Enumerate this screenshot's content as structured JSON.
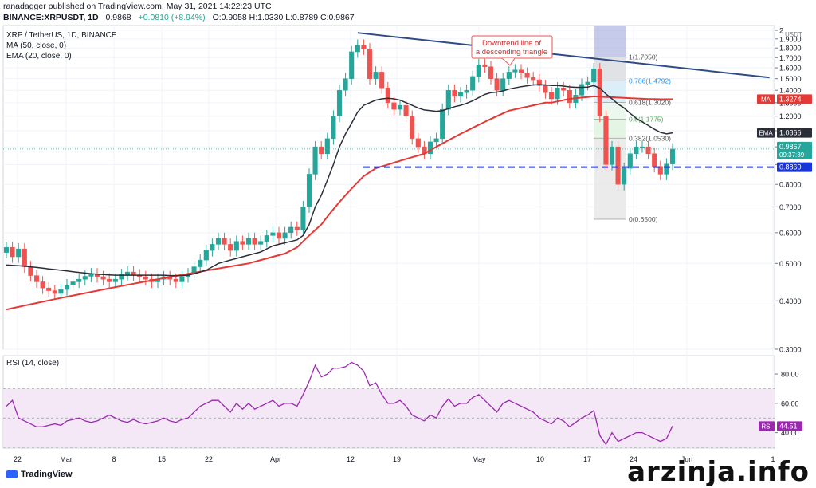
{
  "header": {
    "publisher_line": "ranadagger published on TradingView.com, May 31, 2021 14:22:23 UTC",
    "symbol": "BINANCE:XRPUSDT, 1D",
    "last": "0.9868",
    "change": "+0.0810 (+8.94%)",
    "ohlc": "O:0.9058 H:1.0330 L:0.8789 C:0.9867"
  },
  "indicators": {
    "title": "XRP / TetherUS, 1D, BINANCE",
    "ma": "MA (50, close, 0)",
    "ema": "EMA (20, close, 0)",
    "rsi": "RSI (14, close)"
  },
  "annotation": "Downtrend line of a descending triangle",
  "footer": {
    "brand": "TradingView",
    "watermark": "arzinja.info"
  },
  "colors": {
    "up": "#26a69a",
    "down": "#ef5350",
    "ma": "#e53935",
    "ema": "#2a2e39",
    "trend": "#2f4b85",
    "support": "#1a35d6",
    "rsi": "#9c27b0"
  },
  "chart_data": {
    "type": "candlestick",
    "price_axis_label": "USDT",
    "price_ticks": [
      "0.3000",
      "0.4000",
      "0.5000",
      "0.6000",
      "0.7000",
      "0.8000",
      "0.9000",
      "1.0000",
      "1.1000",
      "1.2000",
      "1.3000",
      "1.4000",
      "1.5000",
      "1.6000",
      "1.7000",
      "1.8000",
      "1.9000",
      "2"
    ],
    "rsi_ticks": [
      "40.00",
      "60.00",
      "80.00"
    ],
    "date_ticks": [
      "22",
      "Mar",
      "8",
      "15",
      "22",
      "Apr",
      "12",
      "19",
      "May",
      "10",
      "17",
      "24",
      "Jun",
      "1"
    ],
    "price_labels": [
      {
        "text": "0.9867",
        "sub": "09:37:39",
        "color": "#26a69a"
      },
      {
        "text": "0.8860",
        "color": "#1a35d6"
      },
      {
        "text": "1.0866",
        "prefix": "EMA",
        "color": "#2a2e39"
      },
      {
        "text": "1.3274",
        "prefix": "MA",
        "color": "#e53935"
      }
    ],
    "rsi_label": {
      "prefix": "RSI",
      "text": "44.51"
    },
    "support_level": 0.886,
    "fib": [
      {
        "label": "1(1.7050)",
        "value": 1.705
      },
      {
        "label": "0.786(1.4792)",
        "value": 1.4792
      },
      {
        "label": "0.618(1.3020)",
        "value": 1.302
      },
      {
        "label": "0.5(1.1775)",
        "value": 1.1775
      },
      {
        "label": "0.382(1.0530)",
        "value": 1.053
      },
      {
        "label": "0(0.6500)",
        "value": 0.65
      }
    ],
    "trendline": [
      {
        "bar": 58,
        "price": 1.97
      },
      {
        "bar": 126,
        "price": 1.51
      }
    ],
    "closes": [
      0.55,
      0.52,
      0.545,
      0.49,
      0.465,
      0.448,
      0.432,
      0.425,
      0.418,
      0.428,
      0.44,
      0.448,
      0.455,
      0.463,
      0.47,
      0.462,
      0.455,
      0.448,
      0.455,
      0.468,
      0.475,
      0.467,
      0.462,
      0.455,
      0.448,
      0.455,
      0.462,
      0.455,
      0.448,
      0.462,
      0.47,
      0.49,
      0.51,
      0.54,
      0.56,
      0.58,
      0.56,
      0.54,
      0.57,
      0.56,
      0.58,
      0.56,
      0.57,
      0.59,
      0.6,
      0.58,
      0.6,
      0.62,
      0.61,
      0.7,
      0.85,
      1.0,
      0.96,
      1.05,
      1.2,
      1.4,
      1.5,
      1.76,
      1.83,
      1.79,
      1.5,
      1.56,
      1.42,
      1.3,
      1.25,
      1.28,
      1.2,
      1.05,
      1.0,
      0.96,
      1.03,
      1.05,
      1.25,
      1.4,
      1.35,
      1.38,
      1.4,
      1.52,
      1.63,
      1.61,
      1.5,
      1.4,
      1.5,
      1.56,
      1.58,
      1.55,
      1.51,
      1.49,
      1.44,
      1.38,
      1.33,
      1.42,
      1.4,
      1.3,
      1.36,
      1.45,
      1.47,
      1.59,
      1.2,
      0.9,
      1.0,
      0.8,
      0.88,
      0.96,
      1.0,
      1.0,
      0.96,
      0.89,
      0.85,
      0.903,
      0.987
    ],
    "ma50": [
      0.38,
      0.383,
      0.386,
      0.389,
      0.392,
      0.395,
      0.398,
      0.401,
      0.404,
      0.407,
      0.41,
      0.413,
      0.416,
      0.419,
      0.422,
      0.425,
      0.428,
      0.431,
      0.434,
      0.437,
      0.44,
      0.443,
      0.446,
      0.449,
      0.452,
      0.455,
      0.458,
      0.461,
      0.464,
      0.467,
      0.47,
      0.473,
      0.476,
      0.479,
      0.482,
      0.485,
      0.488,
      0.491,
      0.494,
      0.497,
      0.5,
      0.505,
      0.51,
      0.515,
      0.52,
      0.525,
      0.53,
      0.54,
      0.55,
      0.57,
      0.59,
      0.61,
      0.63,
      0.66,
      0.69,
      0.72,
      0.75,
      0.78,
      0.81,
      0.84,
      0.86,
      0.88,
      0.89,
      0.9,
      0.91,
      0.92,
      0.93,
      0.94,
      0.95,
      0.96,
      0.98,
      1.0,
      1.02,
      1.04,
      1.06,
      1.08,
      1.1,
      1.12,
      1.14,
      1.16,
      1.18,
      1.2,
      1.22,
      1.24,
      1.25,
      1.26,
      1.27,
      1.28,
      1.29,
      1.3,
      1.3,
      1.31,
      1.32,
      1.33,
      1.335,
      1.34,
      1.345,
      1.35,
      1.348,
      1.345,
      1.343,
      1.34,
      1.338,
      1.335,
      1.333,
      1.331,
      1.329,
      1.328,
      1.327,
      1.327,
      1.327
    ],
    "ema20": [
      0.495,
      0.494,
      0.493,
      0.492,
      0.49,
      0.488,
      0.486,
      0.484,
      0.482,
      0.48,
      0.478,
      0.476,
      0.474,
      0.472,
      0.47,
      0.469,
      0.468,
      0.467,
      0.466,
      0.466,
      0.466,
      0.466,
      0.466,
      0.466,
      0.466,
      0.466,
      0.466,
      0.465,
      0.465,
      0.465,
      0.466,
      0.47,
      0.475,
      0.48,
      0.49,
      0.5,
      0.505,
      0.51,
      0.515,
      0.52,
      0.525,
      0.53,
      0.535,
      0.545,
      0.555,
      0.56,
      0.565,
      0.57,
      0.575,
      0.59,
      0.63,
      0.7,
      0.75,
      0.82,
      0.9,
      1.0,
      1.08,
      1.15,
      1.23,
      1.28,
      1.3,
      1.32,
      1.33,
      1.335,
      1.33,
      1.32,
      1.3,
      1.28,
      1.26,
      1.245,
      1.24,
      1.235,
      1.24,
      1.255,
      1.27,
      1.28,
      1.295,
      1.315,
      1.34,
      1.365,
      1.38,
      1.385,
      1.395,
      1.41,
      1.42,
      1.43,
      1.438,
      1.445,
      1.447,
      1.445,
      1.44,
      1.44,
      1.435,
      1.428,
      1.425,
      1.425,
      1.427,
      1.44,
      1.418,
      1.37,
      1.33,
      1.29,
      1.26,
      1.22,
      1.185,
      1.16,
      1.135,
      1.11,
      1.09,
      1.08,
      1.087
    ],
    "rsi": [
      58,
      62,
      50,
      48,
      46,
      44,
      44,
      45,
      46,
      45,
      48,
      49,
      50,
      48,
      47,
      48,
      50,
      52,
      50,
      48,
      47,
      49,
      47,
      46,
      47,
      48,
      50,
      48,
      47,
      49,
      50,
      54,
      58,
      60,
      62,
      62,
      58,
      54,
      60,
      56,
      60,
      56,
      58,
      60,
      62,
      58,
      60,
      60,
      58,
      66,
      75,
      86,
      78,
      80,
      84,
      84,
      85,
      88,
      86,
      82,
      72,
      74,
      66,
      60,
      60,
      62,
      58,
      52,
      50,
      48,
      52,
      50,
      58,
      63,
      58,
      60,
      60,
      64,
      66,
      62,
      58,
      54,
      60,
      62,
      60,
      58,
      56,
      54,
      50,
      48,
      46,
      50,
      48,
      44,
      47,
      50,
      52,
      55,
      38,
      32,
      40,
      34,
      36,
      38,
      40,
      40,
      38,
      36,
      34,
      36,
      44.51
    ]
  }
}
